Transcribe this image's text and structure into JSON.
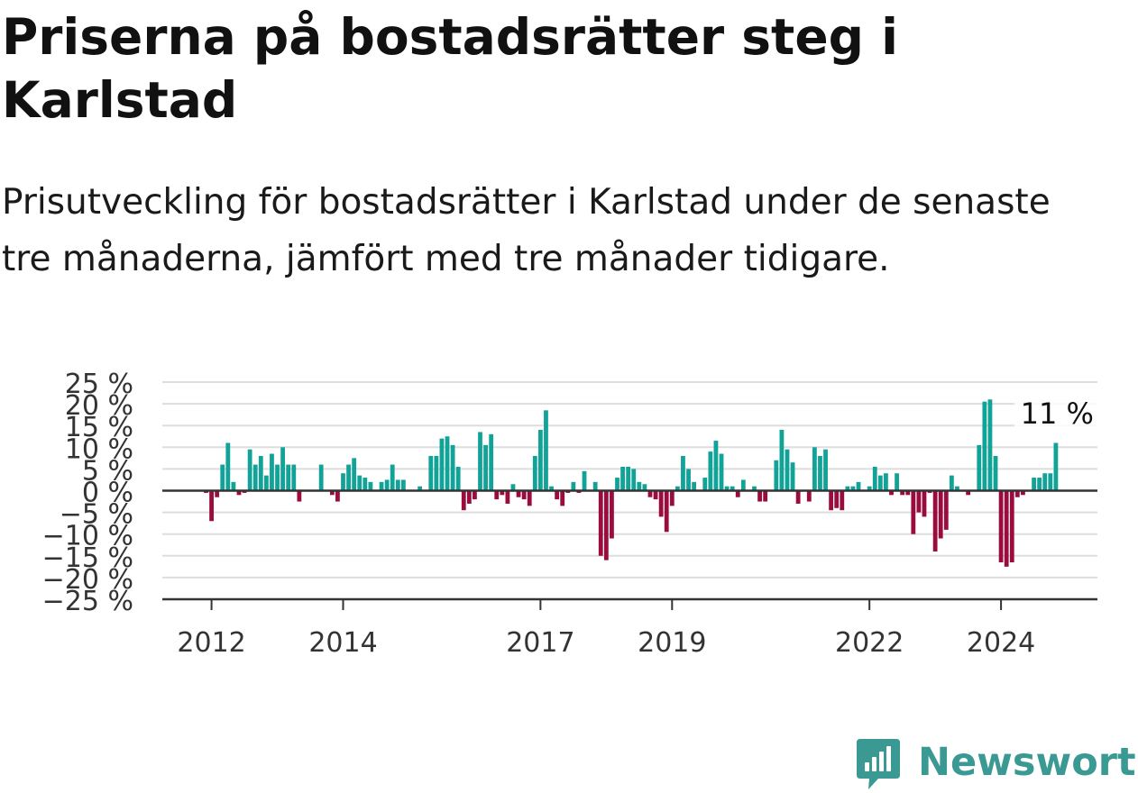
{
  "title": "Priserna på bostadsrätter steg i Karlstad",
  "subtitle": "Prisutveckling för bostadsrätter i Karlstad under de senaste tre månaderna, jämfört med tre månader tidigare.",
  "brand": {
    "name": "Newsworthy",
    "icon": "newsworthy-logo-icon",
    "color": "#3a9992"
  },
  "colors": {
    "positive": "#12a398",
    "negative": "#9a0b3e",
    "grid": "#dddddd",
    "axis": "#333333"
  },
  "chart_data": {
    "type": "bar",
    "x_unit": "month",
    "start": "2011-12",
    "ylim": [
      -25,
      25
    ],
    "y_ticks": [
      25,
      20,
      15,
      10,
      5,
      0,
      -5,
      -10,
      -15,
      -20,
      -25
    ],
    "y_tick_labels": [
      "25 %",
      "20 %",
      "15 %",
      "10 %",
      "5 %",
      "0 %",
      "−5 %",
      "−10 %",
      "−15 %",
      "−20 %",
      "−25 %"
    ],
    "x_ticks": [
      "2012",
      "2014",
      "2017",
      "2019",
      "2022",
      "2024"
    ],
    "annotation": "11 %",
    "grid": true,
    "legend": "none",
    "values": [
      -0.5,
      -7,
      -1.5,
      6,
      11,
      2,
      -1,
      -0.5,
      9.5,
      6,
      8,
      3.5,
      8.5,
      6,
      10,
      6,
      6,
      -2.5,
      0,
      0,
      0,
      6,
      0,
      -1,
      -2.5,
      4,
      6,
      7.5,
      3.5,
      3,
      2,
      0,
      2,
      2.5,
      6,
      2.5,
      2.5,
      0,
      0,
      1,
      0,
      8,
      8,
      12,
      12.5,
      10.5,
      5.5,
      -4.5,
      -3,
      -2,
      13.5,
      10.5,
      13,
      -2,
      -1,
      -3,
      1.5,
      -1.5,
      -2,
      -3.5,
      8,
      14,
      18.5,
      1,
      -2,
      -3.5,
      -0.5,
      2,
      -0.5,
      4.5,
      0,
      2,
      -15,
      -16,
      -11,
      3,
      5.5,
      5.5,
      5,
      2,
      1.5,
      -1.5,
      -2,
      -6,
      -9.5,
      -3.5,
      1,
      8,
      5,
      2,
      0,
      3,
      9,
      11.5,
      8.5,
      1,
      1,
      -1.5,
      2.5,
      0,
      1,
      -2.5,
      -2.5,
      0,
      7,
      14,
      9.5,
      6.5,
      -3,
      0,
      -2.5,
      10,
      8,
      9.5,
      -4.5,
      -4,
      -4.5,
      1,
      1,
      2,
      0,
      1,
      5.5,
      3.5,
      4,
      -1,
      4,
      -1,
      -1,
      -10,
      -5,
      -6,
      -0.5,
      -14,
      -11,
      -9,
      3.5,
      1,
      0,
      -1,
      0,
      10.5,
      20.5,
      21,
      8,
      -16.5,
      -17.5,
      -16.5,
      -1.5,
      -1,
      0,
      3,
      3,
      4,
      4,
      11
    ]
  }
}
